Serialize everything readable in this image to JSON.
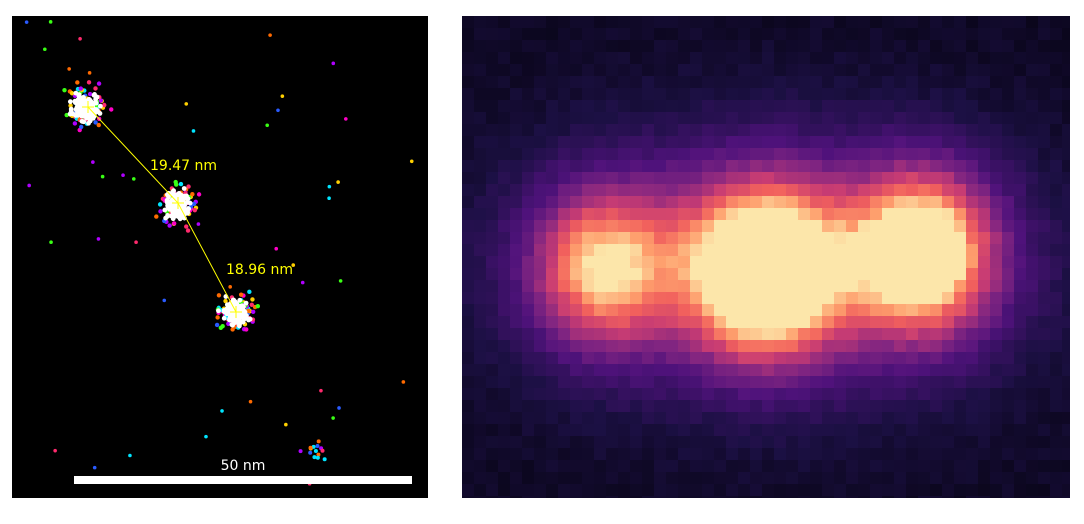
{
  "left_panel": {
    "measurements": [
      {
        "label": "19.47 nm"
      },
      {
        "label": "18.96 nm"
      }
    ],
    "scale_bar": {
      "label": "50 nm"
    }
  }
}
